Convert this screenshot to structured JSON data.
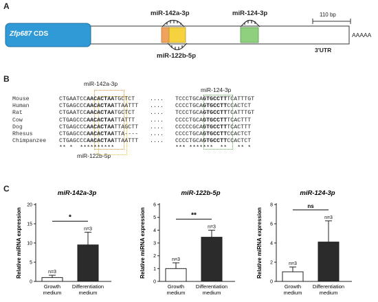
{
  "panel_a": {
    "letter": "A",
    "cds_label": "Zfp687",
    "cds_suffix": " CDS",
    "mir142_label": "miR-142a-3p",
    "mir124_label": "miR-124-3p",
    "mir122_label": "miR-122b-5p",
    "scale_label": "110 bp",
    "polya": "AAAAA",
    "utr_label": "3'UTR",
    "colors": {
      "cds": "#2f9ad6",
      "mir142": "#f0a35c",
      "mir122": "#f7d23f",
      "mir124": "#8fd07f"
    }
  },
  "panel_b": {
    "letter": "B",
    "mir142_label": "miR-142a-3p",
    "mir124_label": "miR-124-3p",
    "mir122_label": "miR-122b-5p",
    "dots": "....",
    "rows": [
      {
        "species": "Mouse",
        "pre": "CTGAATCC",
        "seed": "AACACTAA",
        "post": "TGCTCT",
        "pre2": "TCCCTGCA",
        "seed2": "GTGCCTT",
        "post2": "TCATTTGT"
      },
      {
        "species": "Human",
        "pre": "CTGAGCCC",
        "seed": "AACACTAA",
        "post": "TTAATTT",
        "pre2": "CCCCTGCA",
        "seed2": "GTGCCTT",
        "post2": "CCACTCT"
      },
      {
        "species": "Rat",
        "pre": "CTGAATCC",
        "seed": "AACACTAA",
        "post": "TGCTCT",
        "pre2": "TCCCTGCA",
        "seed2": "GTGCCTT",
        "post2": "TCATTTGT"
      },
      {
        "species": "Cow",
        "pre": "CTGAGCCC",
        "seed": "AACACTAA",
        "post": "TTATTT",
        "pre2": "CCCCTGCA",
        "seed2": "GTGCCTT",
        "post2": "TCACTTT"
      },
      {
        "species": "Dog",
        "pre": "CTGAGCCC",
        "seed": "AACACTAA",
        "post": "TTAGCTT",
        "pre2": "CCCCCGCA",
        "seed2": "GTGCCTT",
        "post2": "TCACTTT"
      },
      {
        "species": "Rhesus",
        "pre": "CTGAGCCC",
        "seed": "AACACTAA",
        "post": "TTA----",
        "pre2": "CCCCTGCA",
        "seed2": "GTGCCTT",
        "post2": "CCACTCT"
      },
      {
        "species": "Chimpanzee",
        "pre": "CTGAGCCC",
        "seed": "AACACTAA",
        "post": "TTAATTT",
        "pre2": "CCCCTGCA",
        "seed2": "GTGCCTT",
        "post2": "CCACTCT"
      }
    ],
    "conservation1": "** *  **********",
    "conservation2": "*** *******  **   ** *"
  },
  "panel_c": {
    "letter": "C",
    "ylabel": "Relative miRNA expression",
    "chart_data": [
      {
        "type": "bar",
        "title": "miR-142a-3p",
        "categories": [
          "Growth\nmedium",
          "Differentiation\nmedium"
        ],
        "values": [
          1.0,
          9.5
        ],
        "errors": [
          0.6,
          3.3
        ],
        "ylim": [
          0,
          20
        ],
        "yticks": [
          0,
          5,
          10,
          15,
          20
        ],
        "n_labels": [
          "n=3",
          "n=3"
        ],
        "significance": "*"
      },
      {
        "type": "bar",
        "title": "miR-122b-5p",
        "categories": [
          "Growth\nmedium",
          "Differentiation\nmedium"
        ],
        "values": [
          1.0,
          3.45
        ],
        "errors": [
          0.45,
          0.55
        ],
        "ylim": [
          0,
          6
        ],
        "yticks": [
          0,
          1,
          2,
          3,
          4,
          5,
          6
        ],
        "n_labels": [
          "n=3",
          "n=3"
        ],
        "significance": "**"
      },
      {
        "type": "bar",
        "title": "miR-124-3p",
        "categories": [
          "Growth\nmedium",
          "Differentiation\nmedium"
        ],
        "values": [
          1.0,
          4.1
        ],
        "errors": [
          0.5,
          2.2
        ],
        "ylim": [
          0,
          8
        ],
        "yticks": [
          0,
          2,
          4,
          6,
          8
        ],
        "n_labels": [
          "n=3",
          "n=3"
        ],
        "significance": "ns"
      }
    ]
  }
}
